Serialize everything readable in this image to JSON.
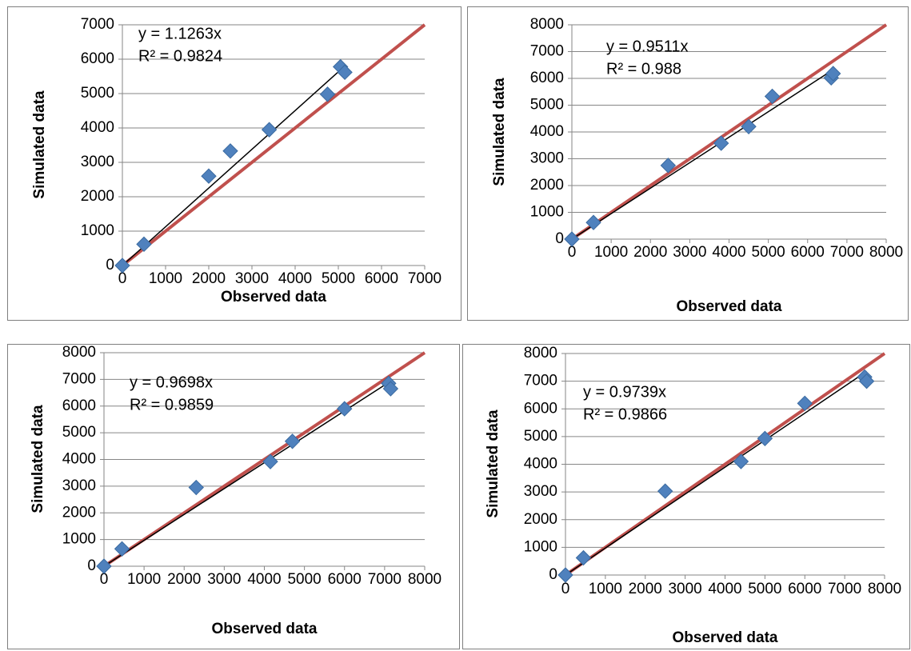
{
  "chart_data": [
    {
      "type": "scatter",
      "xlabel": "Observed data",
      "ylabel": "Simulated data",
      "xlim": [
        0,
        7000
      ],
      "ylim": [
        0,
        7000
      ],
      "x_ticks": [
        "0",
        "1000",
        "2000",
        "3000",
        "4000",
        "5000",
        "6000",
        "7000"
      ],
      "y_ticks": [
        "0",
        "1000",
        "2000",
        "3000",
        "4000",
        "5000",
        "6000",
        "7000"
      ],
      "grid": "horizontal",
      "trendline": {
        "slope": 1.1263,
        "equation": "y = 1.1263x",
        "r2": "R² = 0.9824",
        "color": "#000000"
      },
      "reference_line": {
        "slope": 1,
        "color": "#c0504d"
      },
      "marker_color": "#4f81bd",
      "x": [
        0,
        500,
        2000,
        2500,
        3400,
        4750,
        5050,
        5150
      ],
      "y": [
        0,
        620,
        2600,
        3330,
        3950,
        4980,
        5780,
        5620
      ]
    },
    {
      "type": "scatter",
      "xlabel": "Observed data",
      "ylabel": "Simulated data",
      "xlim": [
        0,
        8000
      ],
      "ylim": [
        0,
        8000
      ],
      "x_ticks": [
        "0",
        "1000",
        "2000",
        "3000",
        "4000",
        "5000",
        "6000",
        "7000",
        "8000"
      ],
      "y_ticks": [
        "0",
        "1000",
        "2000",
        "3000",
        "4000",
        "5000",
        "6000",
        "7000",
        "8000"
      ],
      "grid": "horizontal",
      "trendline": {
        "slope": 0.9511,
        "equation": "y = 0.9511x",
        "r2": "R² = 0.988",
        "color": "#000000"
      },
      "reference_line": {
        "slope": 1,
        "color": "#c0504d"
      },
      "marker_color": "#4f81bd",
      "x": [
        0,
        550,
        2450,
        3800,
        4500,
        5100,
        6600,
        6650
      ],
      "y": [
        0,
        620,
        2750,
        3580,
        4200,
        5330,
        6020,
        6180
      ]
    },
    {
      "type": "scatter",
      "xlabel": "Observed data",
      "ylabel": "Simulated data",
      "xlim": [
        0,
        8000
      ],
      "ylim": [
        0,
        8000
      ],
      "x_ticks": [
        "0",
        "1000",
        "2000",
        "3000",
        "4000",
        "5000",
        "6000",
        "7000",
        "8000"
      ],
      "y_ticks": [
        "0",
        "1000",
        "2000",
        "3000",
        "4000",
        "5000",
        "6000",
        "7000",
        "8000"
      ],
      "grid": "horizontal",
      "trendline": {
        "slope": 0.9698,
        "equation": "y = 0.9698x",
        "r2": "R² = 0.9859",
        "color": "#000000"
      },
      "reference_line": {
        "slope": 1,
        "color": "#c0504d"
      },
      "marker_color": "#4f81bd",
      "x": [
        0,
        450,
        2300,
        4150,
        4700,
        6000,
        7100,
        7150
      ],
      "y": [
        0,
        650,
        2950,
        3920,
        4680,
        5900,
        6850,
        6650
      ]
    },
    {
      "type": "scatter",
      "xlabel": "Observed data",
      "ylabel": "Simulated data",
      "xlim": [
        0,
        8000
      ],
      "ylim": [
        0,
        8000
      ],
      "x_ticks": [
        "0",
        "1000",
        "2000",
        "3000",
        "4000",
        "5000",
        "6000",
        "7000",
        "8000"
      ],
      "y_ticks": [
        "0",
        "1000",
        "2000",
        "3000",
        "4000",
        "5000",
        "6000",
        "7000",
        "8000"
      ],
      "grid": "horizontal",
      "trendline": {
        "slope": 0.9739,
        "equation": "y = 0.9739x",
        "r2": "R² = 0.9866",
        "color": "#000000"
      },
      "reference_line": {
        "slope": 1,
        "color": "#c0504d"
      },
      "marker_color": "#4f81bd",
      "x": [
        0,
        450,
        2500,
        4400,
        5000,
        6000,
        7500,
        7550
      ],
      "y": [
        0,
        620,
        3030,
        4100,
        4930,
        6200,
        7150,
        7000
      ]
    }
  ]
}
